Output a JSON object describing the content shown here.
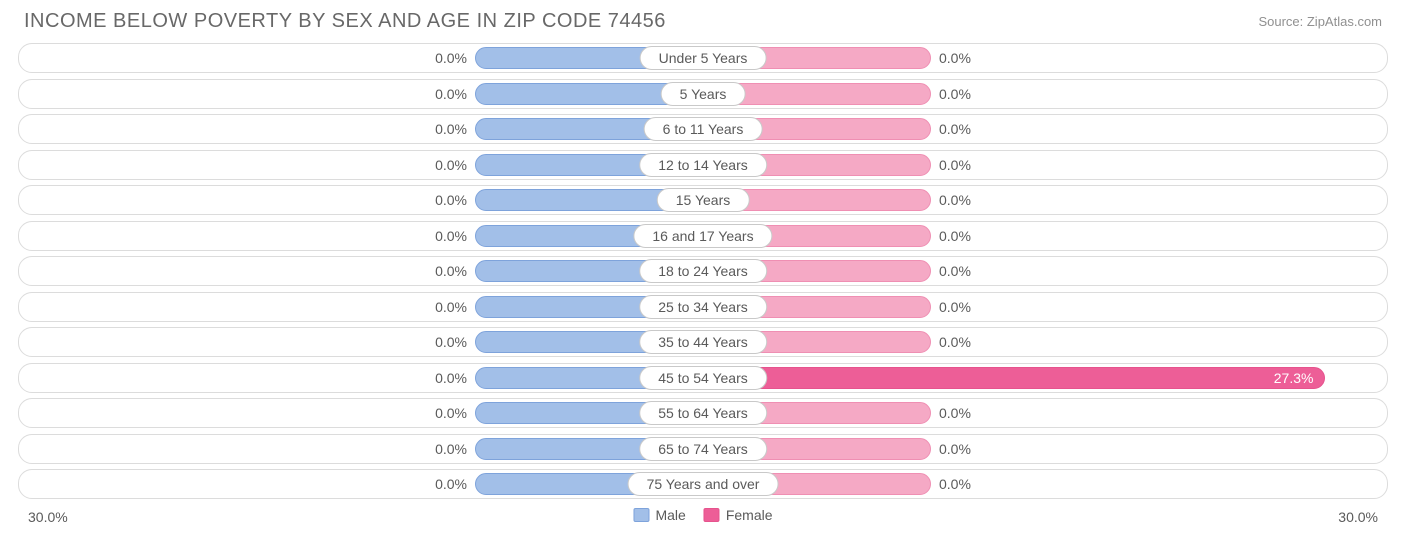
{
  "title": "INCOME BELOW POVERTY BY SEX AND AGE IN ZIP CODE 74456",
  "source": "Source: ZipAtlas.com",
  "chart": {
    "type": "diverging-bar",
    "axis_max": 30.0,
    "axis_label_left": "30.0%",
    "axis_label_right": "30.0%",
    "min_bar_percent": 10.0,
    "track_border_color": "#dcdcdc",
    "track_bg": "#ffffff",
    "label_pill_border": "#c9c9c9",
    "text_color": "#5a5a5a",
    "male": {
      "label": "Male",
      "fill": "#a2bfe8",
      "border": "#7ea3db"
    },
    "female": {
      "label": "Female",
      "fill": "#f5a9c5",
      "border": "#ef8fb3",
      "highlight_fill": "#ed5e97",
      "highlight_border": "#e6538d"
    },
    "rows": [
      {
        "label": "Under 5 Years",
        "male": 0.0,
        "female": 0.0
      },
      {
        "label": "5 Years",
        "male": 0.0,
        "female": 0.0
      },
      {
        "label": "6 to 11 Years",
        "male": 0.0,
        "female": 0.0
      },
      {
        "label": "12 to 14 Years",
        "male": 0.0,
        "female": 0.0
      },
      {
        "label": "15 Years",
        "male": 0.0,
        "female": 0.0
      },
      {
        "label": "16 and 17 Years",
        "male": 0.0,
        "female": 0.0
      },
      {
        "label": "18 to 24 Years",
        "male": 0.0,
        "female": 0.0
      },
      {
        "label": "25 to 34 Years",
        "male": 0.0,
        "female": 0.0
      },
      {
        "label": "35 to 44 Years",
        "male": 0.0,
        "female": 0.0
      },
      {
        "label": "45 to 54 Years",
        "male": 0.0,
        "female": 27.3
      },
      {
        "label": "55 to 64 Years",
        "male": 0.0,
        "female": 0.0
      },
      {
        "label": "65 to 74 Years",
        "male": 0.0,
        "female": 0.0
      },
      {
        "label": "75 Years and over",
        "male": 0.0,
        "female": 0.0
      }
    ]
  }
}
